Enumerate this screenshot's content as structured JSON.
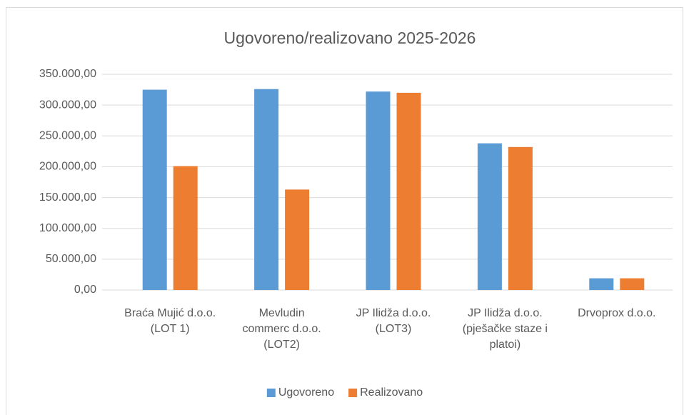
{
  "chart_data": {
    "type": "bar",
    "title": "Ugovoreno/realizovano 2025-2026",
    "categories": [
      "Braća Mujić d.o.o. (LOT 1)",
      "Mevludin commerc d.o.o. (LOT2)",
      "JP Ilidža d.o.o. (LOT3)",
      "JP Ilidža d.o.o. (pješačke staze i platoi)",
      "Drvoprox d.o.o."
    ],
    "series": [
      {
        "name": "Ugovoreno",
        "color": "#5b9bd5",
        "values": [
          325000,
          326000,
          322000,
          238000,
          19000
        ]
      },
      {
        "name": "Realizovano",
        "color": "#ed7d31",
        "values": [
          201000,
          163000,
          320000,
          232000,
          19000
        ]
      }
    ],
    "ylim": [
      0,
      350000
    ],
    "yticks": [
      {
        "value": 0,
        "label": "0,00"
      },
      {
        "value": 50000,
        "label": "50.000,00"
      },
      {
        "value": 100000,
        "label": "100.000,00"
      },
      {
        "value": 150000,
        "label": "150.000,00"
      },
      {
        "value": 200000,
        "label": "200.000,00"
      },
      {
        "value": 250000,
        "label": "250.000,00"
      },
      {
        "value": 300000,
        "label": "300.000,00"
      },
      {
        "value": 350000,
        "label": "350.000,00"
      }
    ],
    "grid": true,
    "legend": "bottom"
  }
}
